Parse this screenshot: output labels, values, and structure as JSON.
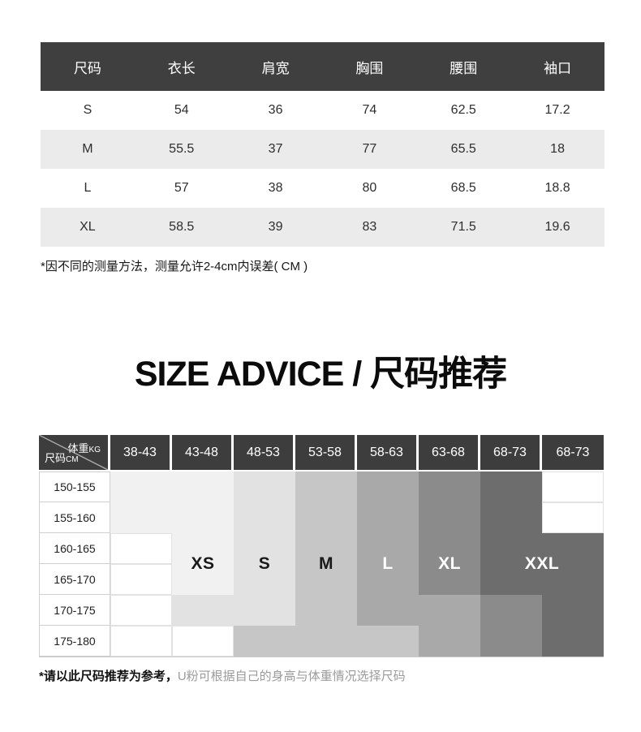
{
  "title": "SIZE ADVICE / 尺码推荐",
  "notes": {
    "measure": "*因不同的测量方法，测量允许2-4cm内误差( CM )",
    "advice_bold": "*请以此尺码推荐为参考，",
    "advice_rest": "U粉可根据自己的身高与体重情况选择尺码"
  },
  "chart_data": [
    {
      "type": "table",
      "columns": [
        "尺码",
        "衣长",
        "肩宽",
        "胸围",
        "腰围",
        "袖口"
      ],
      "rows": [
        [
          "S",
          "54",
          "36",
          "74",
          "62.5",
          "17.2"
        ],
        [
          "M",
          "55.5",
          "37",
          "77",
          "65.5",
          "18"
        ],
        [
          "L",
          "57",
          "38",
          "80",
          "68.5",
          "18.8"
        ],
        [
          "XL",
          "58.5",
          "39",
          "83",
          "71.5",
          "19.6"
        ]
      ]
    },
    {
      "type": "heatmap",
      "x_axis_label": "体重KG",
      "y_axis_label": "尺码CM",
      "x_categories": [
        "38-43",
        "43-48",
        "48-53",
        "53-58",
        "58-63",
        "63-68",
        "68-73",
        "68-73"
      ],
      "y_categories": [
        "150-155",
        "155-160",
        "160-165",
        "165-170",
        "170-175",
        "175-180"
      ],
      "values": [
        [
          "XS",
          "XS",
          "S",
          "M",
          "L",
          "XL",
          "XXL",
          ""
        ],
        [
          "XS",
          "XS",
          "S",
          "M",
          "L",
          "XL",
          "XXL",
          ""
        ],
        [
          "",
          "XS",
          "S",
          "M",
          "L",
          "XL",
          "XXL",
          "XXL"
        ],
        [
          "",
          "XS",
          "S",
          "M",
          "L",
          "XL",
          "XXL",
          "XXL"
        ],
        [
          "",
          "S",
          "S",
          "M",
          "L",
          "L",
          "XL",
          "XXL"
        ],
        [
          "",
          "",
          "M",
          "M",
          "M",
          "L",
          "XL",
          "XXL"
        ]
      ]
    }
  ],
  "presentation": {
    "corner": {
      "weight": "体重",
      "weight_unit": "KG",
      "size": "尺码",
      "size_unit": "CM"
    },
    "header_bg": "#3f3f3f",
    "chart_header_bg": "#3d3d3d",
    "alt_row_bg": "#ebebeb",
    "shade_colors": {
      "XS": "#f1f1f1",
      "S": "#e2e2e2",
      "M": "#c6c6c6",
      "L": "#a9a9a9",
      "XL": "#8b8b8b",
      "XXL": "#6d6d6d",
      "": "#ffffff"
    },
    "size_labels": [
      {
        "text": "XS",
        "col": 2,
        "span": 1,
        "color": "#1a1a1a"
      },
      {
        "text": "S",
        "col": 3,
        "span": 1,
        "color": "#1a1a1a"
      },
      {
        "text": "M",
        "col": 4,
        "span": 1,
        "color": "#1a1a1a"
      },
      {
        "text": "L",
        "col": 5,
        "span": 1,
        "color": "#ffffff"
      },
      {
        "text": "XL",
        "col": 6,
        "span": 1,
        "color": "#ffffff"
      },
      {
        "text": "XXL",
        "col": 7,
        "span": 2,
        "color": "#ffffff"
      }
    ]
  }
}
